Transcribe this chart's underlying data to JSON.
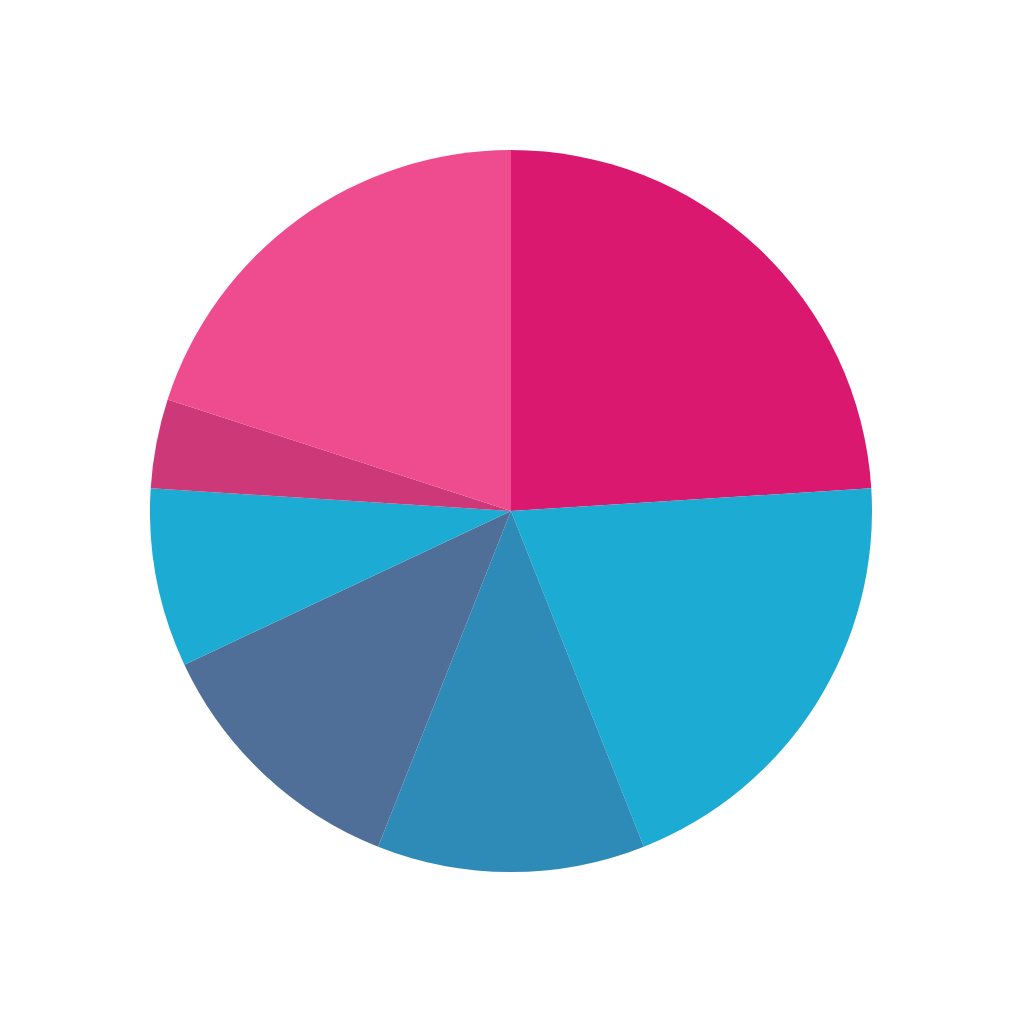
{
  "chart_data": {
    "type": "pie",
    "categories": [
      null,
      null,
      null,
      null,
      null,
      null,
      null
    ],
    "values": [
      24,
      20,
      12,
      12,
      8,
      4,
      20
    ],
    "colors": [
      "#db1870",
      "#1babd3",
      "#2e8bb8",
      "#506f98",
      "#1babd3",
      "#cd3878",
      "#ef4b8f"
    ]
  }
}
